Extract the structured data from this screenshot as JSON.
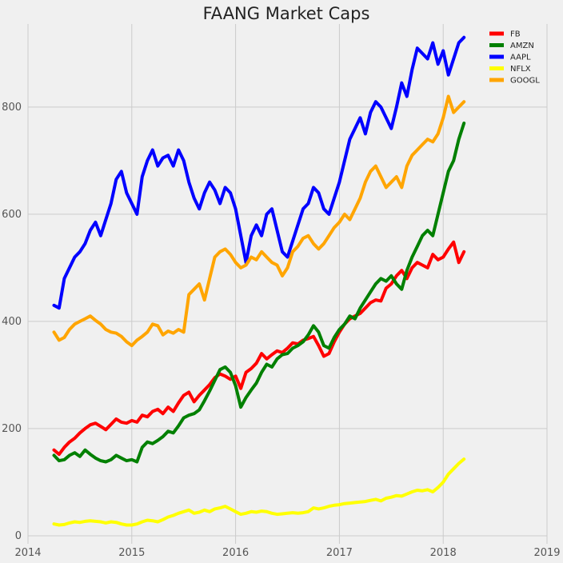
{
  "chart_data": {
    "type": "line",
    "title": "FAANG Market Caps",
    "xlabel": "",
    "ylabel": "",
    "xlim": [
      2014.0,
      2019.0
    ],
    "ylim": [
      -15,
      955
    ],
    "x_ticks": [
      2014,
      2015,
      2016,
      2017,
      2018,
      2019
    ],
    "x_tick_labels": [
      "2014",
      "2015",
      "2016",
      "2017",
      "2018",
      "2019"
    ],
    "y_ticks": [
      0,
      200,
      400,
      600,
      800
    ],
    "y_tick_labels": [
      "0",
      "200",
      "400",
      "600",
      "800"
    ],
    "grid": true,
    "legend_position": "top-right",
    "colors": {
      "background": "#f0f0f0",
      "grid": "#cbcbcb",
      "FB": "#ff0000",
      "AMZN": "#008000",
      "AAPL": "#0000ff",
      "NFLX": "#ffff00",
      "GOOGL": "#ffa500"
    },
    "series": [
      {
        "name": "FB",
        "color": "#ff0000",
        "x": [
          2014.25,
          2014.3,
          2014.35,
          2014.4,
          2014.45,
          2014.5,
          2014.55,
          2014.6,
          2014.65,
          2014.7,
          2014.75,
          2014.8,
          2014.85,
          2014.9,
          2014.95,
          2015.0,
          2015.05,
          2015.1,
          2015.15,
          2015.2,
          2015.25,
          2015.3,
          2015.35,
          2015.4,
          2015.45,
          2015.5,
          2015.55,
          2015.6,
          2015.65,
          2015.7,
          2015.75,
          2015.8,
          2015.85,
          2015.9,
          2015.95,
          2016.0,
          2016.05,
          2016.1,
          2016.15,
          2016.2,
          2016.25,
          2016.3,
          2016.35,
          2016.4,
          2016.45,
          2016.5,
          2016.55,
          2016.6,
          2016.65,
          2016.7,
          2016.75,
          2016.8,
          2016.85,
          2016.9,
          2016.95,
          2017.0,
          2017.05,
          2017.1,
          2017.15,
          2017.2,
          2017.25,
          2017.3,
          2017.35,
          2017.4,
          2017.45,
          2017.5,
          2017.55,
          2017.6,
          2017.65,
          2017.7,
          2017.75,
          2017.8,
          2017.85,
          2017.9,
          2017.95,
          2018.0,
          2018.05,
          2018.1,
          2018.15,
          2018.2
        ],
        "values": [
          160,
          152,
          165,
          175,
          182,
          192,
          200,
          207,
          210,
          204,
          198,
          208,
          218,
          212,
          210,
          215,
          212,
          225,
          222,
          232,
          236,
          228,
          240,
          232,
          248,
          262,
          268,
          250,
          262,
          272,
          282,
          295,
          302,
          298,
          292,
          298,
          275,
          305,
          312,
          322,
          340,
          330,
          338,
          345,
          342,
          350,
          360,
          358,
          365,
          368,
          372,
          355,
          335,
          340,
          362,
          380,
          395,
          405,
          410,
          415,
          425,
          435,
          440,
          438,
          462,
          470,
          485,
          495,
          480,
          500,
          510,
          505,
          500,
          525,
          515,
          520,
          535,
          548,
          510,
          530
        ]
      },
      {
        "name": "AMZN",
        "color": "#008000",
        "x": [
          2014.25,
          2014.3,
          2014.35,
          2014.4,
          2014.45,
          2014.5,
          2014.55,
          2014.6,
          2014.65,
          2014.7,
          2014.75,
          2014.8,
          2014.85,
          2014.9,
          2014.95,
          2015.0,
          2015.05,
          2015.1,
          2015.15,
          2015.2,
          2015.25,
          2015.3,
          2015.35,
          2015.4,
          2015.45,
          2015.5,
          2015.55,
          2015.6,
          2015.65,
          2015.7,
          2015.75,
          2015.8,
          2015.85,
          2015.9,
          2015.95,
          2016.0,
          2016.05,
          2016.1,
          2016.15,
          2016.2,
          2016.25,
          2016.3,
          2016.35,
          2016.4,
          2016.45,
          2016.5,
          2016.55,
          2016.6,
          2016.65,
          2016.7,
          2016.75,
          2016.8,
          2016.85,
          2016.9,
          2016.95,
          2017.0,
          2017.05,
          2017.1,
          2017.15,
          2017.2,
          2017.25,
          2017.3,
          2017.35,
          2017.4,
          2017.45,
          2017.5,
          2017.55,
          2017.6,
          2017.65,
          2017.7,
          2017.75,
          2017.8,
          2017.85,
          2017.9,
          2017.95,
          2018.0,
          2018.05,
          2018.1,
          2018.15,
          2018.2
        ],
        "values": [
          150,
          140,
          142,
          150,
          155,
          148,
          160,
          152,
          145,
          140,
          138,
          142,
          150,
          145,
          140,
          142,
          138,
          165,
          175,
          172,
          178,
          185,
          195,
          192,
          205,
          220,
          225,
          228,
          235,
          252,
          270,
          290,
          310,
          315,
          305,
          280,
          240,
          258,
          272,
          285,
          305,
          320,
          315,
          330,
          338,
          340,
          350,
          355,
          362,
          375,
          392,
          380,
          355,
          350,
          370,
          385,
          395,
          410,
          405,
          425,
          440,
          455,
          470,
          480,
          475,
          485,
          470,
          460,
          495,
          520,
          540,
          560,
          570,
          560,
          600,
          640,
          680,
          700,
          740,
          770
        ]
      },
      {
        "name": "AAPL",
        "color": "#0000ff",
        "x": [
          2014.25,
          2014.3,
          2014.35,
          2014.4,
          2014.45,
          2014.5,
          2014.55,
          2014.6,
          2014.65,
          2014.7,
          2014.75,
          2014.8,
          2014.85,
          2014.9,
          2014.95,
          2015.0,
          2015.05,
          2015.1,
          2015.15,
          2015.2,
          2015.25,
          2015.3,
          2015.35,
          2015.4,
          2015.45,
          2015.5,
          2015.55,
          2015.6,
          2015.65,
          2015.7,
          2015.75,
          2015.8,
          2015.85,
          2015.9,
          2015.95,
          2016.0,
          2016.05,
          2016.1,
          2016.15,
          2016.2,
          2016.25,
          2016.3,
          2016.35,
          2016.4,
          2016.45,
          2016.5,
          2016.55,
          2016.6,
          2016.65,
          2016.7,
          2016.75,
          2016.8,
          2016.85,
          2016.9,
          2016.95,
          2017.0,
          2017.05,
          2017.1,
          2017.15,
          2017.2,
          2017.25,
          2017.3,
          2017.35,
          2017.4,
          2017.45,
          2017.5,
          2017.55,
          2017.6,
          2017.65,
          2017.7,
          2017.75,
          2017.8,
          2017.85,
          2017.9,
          2017.95,
          2018.0,
          2018.05,
          2018.1,
          2018.15,
          2018.2
        ],
        "values": [
          430,
          425,
          480,
          500,
          520,
          530,
          545,
          570,
          585,
          560,
          590,
          620,
          665,
          680,
          640,
          620,
          600,
          670,
          700,
          720,
          690,
          705,
          710,
          690,
          720,
          700,
          660,
          630,
          610,
          640,
          660,
          645,
          620,
          650,
          640,
          610,
          560,
          510,
          560,
          580,
          560,
          600,
          610,
          570,
          530,
          520,
          550,
          580,
          610,
          620,
          650,
          640,
          610,
          600,
          630,
          660,
          700,
          740,
          760,
          780,
          750,
          790,
          810,
          800,
          780,
          760,
          800,
          845,
          820,
          870,
          910,
          900,
          890,
          920,
          880,
          905,
          860,
          890,
          920,
          930
        ]
      },
      {
        "name": "NFLX",
        "color": "#ffff00",
        "x": [
          2014.25,
          2014.3,
          2014.35,
          2014.4,
          2014.45,
          2014.5,
          2014.55,
          2014.6,
          2014.65,
          2014.7,
          2014.75,
          2014.8,
          2014.85,
          2014.9,
          2014.95,
          2015.0,
          2015.05,
          2015.1,
          2015.15,
          2015.2,
          2015.25,
          2015.3,
          2015.35,
          2015.4,
          2015.45,
          2015.5,
          2015.55,
          2015.6,
          2015.65,
          2015.7,
          2015.75,
          2015.8,
          2015.85,
          2015.9,
          2015.95,
          2016.0,
          2016.05,
          2016.1,
          2016.15,
          2016.2,
          2016.25,
          2016.3,
          2016.35,
          2016.4,
          2016.45,
          2016.5,
          2016.55,
          2016.6,
          2016.65,
          2016.7,
          2016.75,
          2016.8,
          2016.85,
          2016.9,
          2016.95,
          2017.0,
          2017.05,
          2017.1,
          2017.15,
          2017.2,
          2017.25,
          2017.3,
          2017.35,
          2017.4,
          2017.45,
          2017.5,
          2017.55,
          2017.6,
          2017.65,
          2017.7,
          2017.75,
          2017.8,
          2017.85,
          2017.9,
          2017.95,
          2018.0,
          2018.05,
          2018.1,
          2018.15,
          2018.2
        ],
        "values": [
          22,
          20,
          21,
          24,
          26,
          25,
          27,
          28,
          27,
          26,
          24,
          26,
          25,
          22,
          20,
          20,
          22,
          26,
          29,
          28,
          26,
          30,
          35,
          38,
          42,
          45,
          48,
          42,
          44,
          48,
          45,
          50,
          52,
          55,
          50,
          45,
          40,
          42,
          45,
          44,
          46,
          45,
          42,
          40,
          41,
          42,
          43,
          42,
          43,
          45,
          52,
          50,
          52,
          55,
          57,
          58,
          60,
          61,
          62,
          63,
          64,
          66,
          68,
          65,
          70,
          72,
          75,
          74,
          78,
          82,
          85,
          84,
          86,
          82,
          90,
          100,
          115,
          125,
          135,
          143
        ]
      },
      {
        "name": "GOOGL",
        "color": "#ffa500",
        "x": [
          2014.25,
          2014.3,
          2014.35,
          2014.4,
          2014.45,
          2014.5,
          2014.55,
          2014.6,
          2014.65,
          2014.7,
          2014.75,
          2014.8,
          2014.85,
          2014.9,
          2014.95,
          2015.0,
          2015.05,
          2015.1,
          2015.15,
          2015.2,
          2015.25,
          2015.3,
          2015.35,
          2015.4,
          2015.45,
          2015.5,
          2015.55,
          2015.6,
          2015.65,
          2015.7,
          2015.75,
          2015.8,
          2015.85,
          2015.9,
          2015.95,
          2016.0,
          2016.05,
          2016.1,
          2016.15,
          2016.2,
          2016.25,
          2016.3,
          2016.35,
          2016.4,
          2016.45,
          2016.5,
          2016.55,
          2016.6,
          2016.65,
          2016.7,
          2016.75,
          2016.8,
          2016.85,
          2016.9,
          2016.95,
          2017.0,
          2017.05,
          2017.1,
          2017.15,
          2017.2,
          2017.25,
          2017.3,
          2017.35,
          2017.4,
          2017.45,
          2017.5,
          2017.55,
          2017.6,
          2017.65,
          2017.7,
          2017.75,
          2017.8,
          2017.85,
          2017.9,
          2017.95,
          2018.0,
          2018.05,
          2018.1,
          2018.15,
          2018.2
        ],
        "values": [
          380,
          365,
          370,
          385,
          395,
          400,
          405,
          410,
          402,
          395,
          385,
          380,
          378,
          372,
          362,
          355,
          365,
          372,
          380,
          395,
          392,
          375,
          382,
          378,
          385,
          380,
          450,
          460,
          470,
          440,
          480,
          520,
          530,
          535,
          525,
          510,
          500,
          505,
          520,
          515,
          530,
          520,
          510,
          505,
          485,
          500,
          530,
          540,
          555,
          560,
          545,
          535,
          545,
          560,
          575,
          585,
          600,
          590,
          610,
          630,
          660,
          680,
          690,
          670,
          650,
          660,
          670,
          650,
          690,
          710,
          720,
          730,
          740,
          735,
          750,
          780,
          820,
          790,
          800,
          810
        ]
      }
    ]
  }
}
